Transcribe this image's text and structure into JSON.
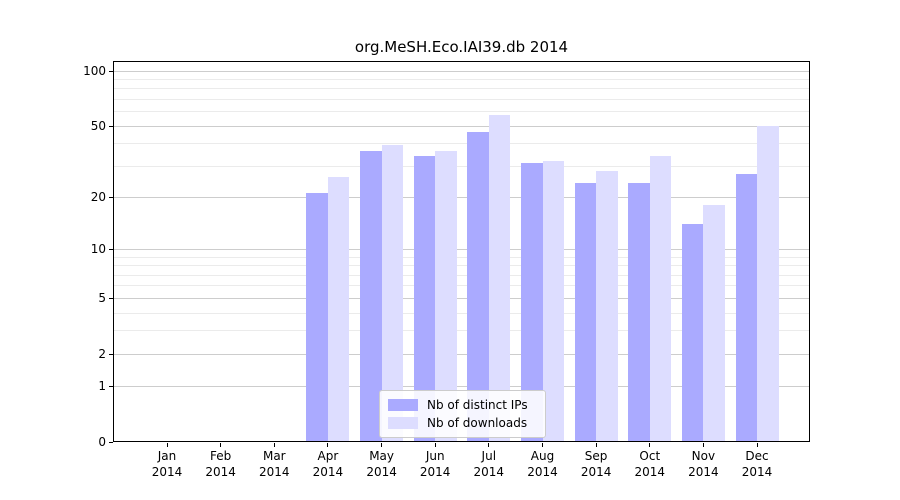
{
  "figure": {
    "title": "org.MeSH.Eco.IAI39.db 2014",
    "background": "#ffffff"
  },
  "legend": {
    "items": [
      {
        "label": "Nb of distinct IPs",
        "color": "#aaaaff"
      },
      {
        "label": "Nb of downloads",
        "color": "#ddddff"
      }
    ]
  },
  "chart_data": {
    "type": "bar",
    "title": "org.MeSH.Eco.IAI39.db 2014",
    "categories": [
      "Jan 2014",
      "Feb 2014",
      "Mar 2014",
      "Apr 2014",
      "May 2014",
      "Jun 2014",
      "Jul 2014",
      "Aug 2014",
      "Sep 2014",
      "Oct 2014",
      "Nov 2014",
      "Dec 2014"
    ],
    "x_tick_line1": [
      "Jan",
      "Feb",
      "Mar",
      "Apr",
      "May",
      "Jun",
      "Jul",
      "Aug",
      "Sep",
      "Oct",
      "Nov",
      "Dec"
    ],
    "x_tick_line2": "2014",
    "series": [
      {
        "name": "Nb of distinct IPs",
        "color": "#aaaaff",
        "values": [
          0,
          0,
          0,
          21,
          36,
          34,
          46,
          31,
          24,
          24,
          14,
          27
        ]
      },
      {
        "name": "Nb of downloads",
        "color": "#ddddff",
        "values": [
          0,
          0,
          0,
          26,
          39,
          36,
          57,
          32,
          28,
          34,
          18,
          50
        ]
      }
    ],
    "yscale": "log10(value+1)",
    "y_ticks": [
      0,
      1,
      2,
      5,
      10,
      20,
      50,
      100
    ],
    "y_minor_gridlines": [
      3,
      4,
      6,
      7,
      8,
      9,
      30,
      40,
      60,
      70,
      80,
      90
    ],
    "ylim": [
      0,
      113
    ],
    "xlabel": "",
    "ylabel": "",
    "grid": "horizontal",
    "legend_position": "bottom-center"
  }
}
